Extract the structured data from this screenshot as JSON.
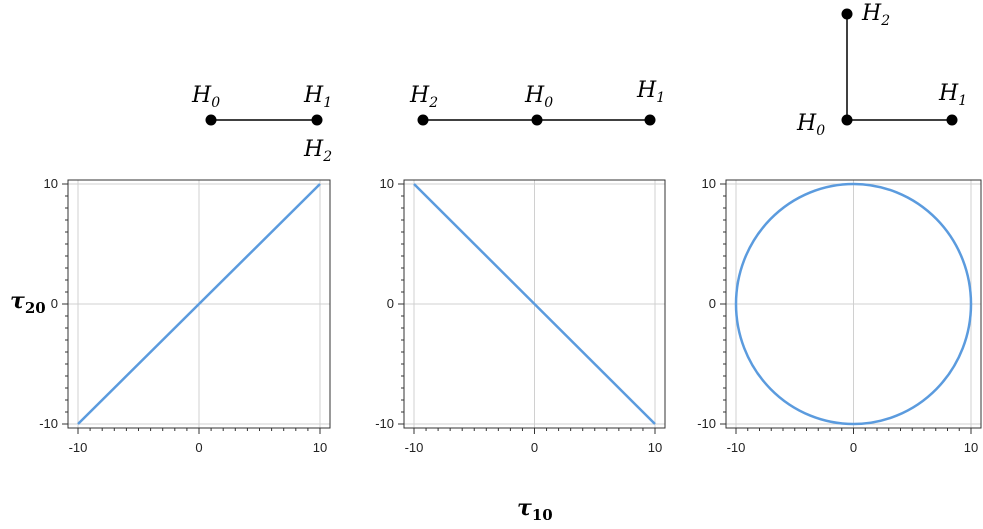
{
  "colors": {
    "series": "#5b9bde",
    "grid": "#d0d0d0",
    "frame": "#333333",
    "node": "#000000"
  },
  "axis_titles": {
    "x": {
      "main": "τ",
      "sub": "10"
    },
    "y": {
      "main": "τ",
      "sub": "20"
    }
  },
  "chart_data": [
    {
      "type": "line",
      "x": [
        -10,
        10
      ],
      "y": [
        -10,
        10
      ],
      "xlim": [
        -10,
        10
      ],
      "ylim": [
        -10,
        10
      ],
      "xticks": [
        "-10",
        "0",
        "10"
      ],
      "yticks": [
        "-10",
        "0",
        "10"
      ],
      "grid": true,
      "nodes": [
        {
          "label": "H",
          "sub": "0"
        },
        {
          "label": "H",
          "sub": "1"
        },
        {
          "label": "H",
          "sub": "2"
        }
      ]
    },
    {
      "type": "line",
      "x": [
        -10,
        10
      ],
      "y": [
        10,
        -10
      ],
      "xlim": [
        -10,
        10
      ],
      "ylim": [
        -10,
        10
      ],
      "xticks": [
        "-10",
        "0",
        "10"
      ],
      "yticks": [
        "-10",
        "0",
        "10"
      ],
      "grid": true,
      "nodes": [
        {
          "label": "H",
          "sub": "2"
        },
        {
          "label": "H",
          "sub": "0"
        },
        {
          "label": "H",
          "sub": "1"
        }
      ]
    },
    {
      "type": "line",
      "shape": "circle",
      "center": [
        0,
        0
      ],
      "radius": 10,
      "xlim": [
        -10,
        10
      ],
      "ylim": [
        -10,
        10
      ],
      "xticks": [
        "-10",
        "0",
        "10"
      ],
      "yticks": [
        "-10",
        "0",
        "10"
      ],
      "grid": true,
      "nodes": [
        {
          "label": "H",
          "sub": "2"
        },
        {
          "label": "H",
          "sub": "0"
        },
        {
          "label": "H",
          "sub": "1"
        }
      ]
    }
  ]
}
